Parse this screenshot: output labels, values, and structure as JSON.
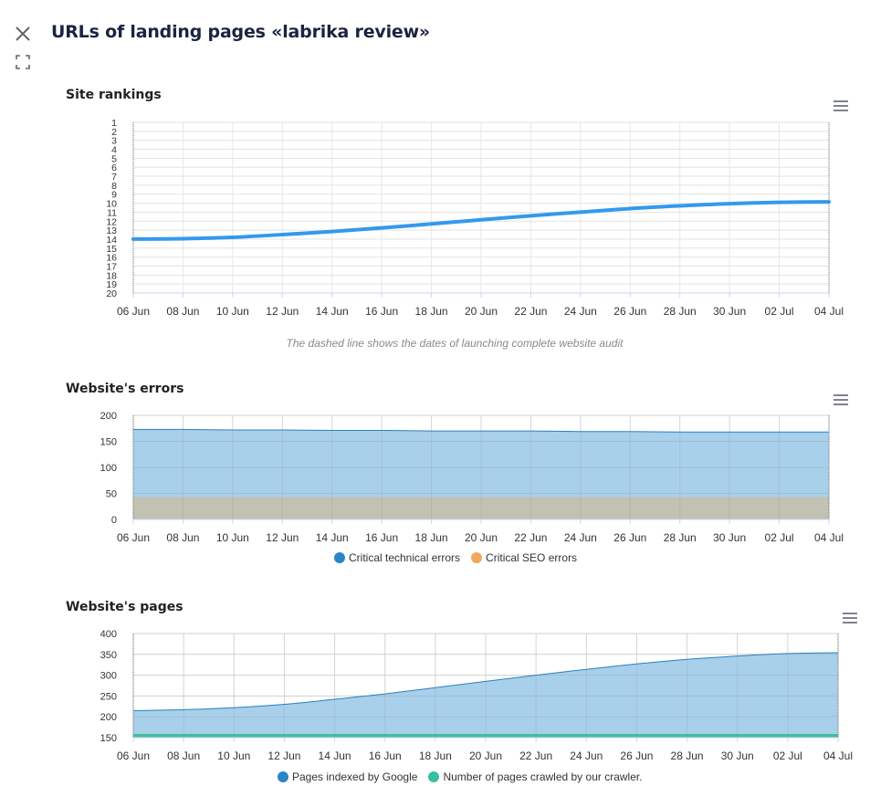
{
  "header": {
    "title": "URLs of landing pages «labrika review»",
    "close_icon": "close-icon",
    "expand_icon": "expand-icon"
  },
  "colors": {
    "rankings_line": "#3399ee",
    "errors_tech": "#a8d0ea",
    "errors_tech_line": "#2a7fbf",
    "errors_seo": "#c4c0ae",
    "pages_google": "#a8d0ea",
    "pages_google_line": "#2a7fbf",
    "pages_crawler": "#3dbfa0",
    "legend_tech": "#2a85c6",
    "legend_seo": "#f3a85c",
    "legend_google": "#2a85c6",
    "legend_crawler": "#34c0a0"
  },
  "chart_data": [
    {
      "type": "line",
      "title": "Site rankings",
      "x": [
        "06 Jun",
        "08 Jun",
        "10 Jun",
        "12 Jun",
        "14 Jun",
        "16 Jun",
        "18 Jun",
        "20 Jun",
        "22 Jun",
        "24 Jun",
        "26 Jun",
        "28 Jun",
        "30 Jun",
        "02 Jul",
        "04 Jul"
      ],
      "yticks": [
        1,
        2,
        3,
        4,
        5,
        6,
        7,
        8,
        9,
        10,
        11,
        12,
        13,
        14,
        15,
        16,
        17,
        18,
        19,
        20
      ],
      "ylim": [
        1,
        20
      ],
      "y_reversed": true,
      "series": [
        {
          "values": [
            14.0,
            13.95,
            13.8,
            13.5,
            13.15,
            12.75,
            12.3,
            11.85,
            11.4,
            11.0,
            10.6,
            10.3,
            10.05,
            9.9,
            9.85
          ]
        }
      ],
      "note": "The dashed line shows the dates of launching complete website audit",
      "grid": true
    },
    {
      "type": "area",
      "title": "Website's errors",
      "x": [
        "06 Jun",
        "08 Jun",
        "10 Jun",
        "12 Jun",
        "14 Jun",
        "16 Jun",
        "18 Jun",
        "20 Jun",
        "22 Jun",
        "24 Jun",
        "26 Jun",
        "28 Jun",
        "30 Jun",
        "02 Jul",
        "04 Jul"
      ],
      "yticks": [
        0,
        50,
        100,
        150,
        200
      ],
      "ylim": [
        0,
        200
      ],
      "series": [
        {
          "name": "Critical technical errors",
          "values": [
            173,
            173,
            172,
            172,
            171,
            171,
            170,
            170,
            170,
            169,
            169,
            168,
            168,
            168,
            168
          ]
        },
        {
          "name": "Critical SEO errors",
          "values": [
            42,
            42,
            42,
            42,
            42,
            42,
            42,
            42,
            42,
            42,
            42,
            42,
            42,
            42,
            42
          ]
        }
      ],
      "legend": "bottom-center",
      "grid": true
    },
    {
      "type": "area",
      "title": "Website's pages",
      "x": [
        "06 Jun",
        "08 Jun",
        "10 Jun",
        "12 Jun",
        "14 Jun",
        "16 Jun",
        "18 Jun",
        "20 Jun",
        "22 Jun",
        "24 Jun",
        "26 Jun",
        "28 Jun",
        "30 Jun",
        "02 Jul",
        "04 Jul"
      ],
      "yticks": [
        150,
        200,
        250,
        300,
        350,
        400
      ],
      "ylim": [
        150,
        400
      ],
      "series": [
        {
          "name": "Pages indexed by Google",
          "values": [
            215,
            217,
            222,
            230,
            242,
            255,
            270,
            285,
            300,
            314,
            327,
            338,
            346,
            352,
            354
          ]
        },
        {
          "name": "Number of pages crawled by our crawler.",
          "values": [
            156,
            156,
            156,
            156,
            156,
            156,
            156,
            156,
            156,
            156,
            156,
            156,
            156,
            156,
            156
          ]
        }
      ],
      "legend": "bottom-center",
      "grid": true
    }
  ]
}
